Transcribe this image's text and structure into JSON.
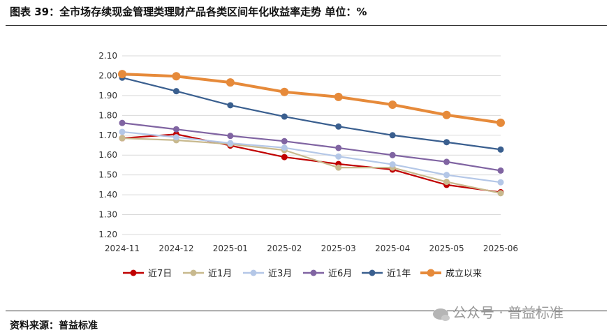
{
  "header": {
    "title": "图表 39：全市场存续现金管理类理财产品各类区间年化收益率走势  单位：%"
  },
  "footer": {
    "source": "资料来源：普益标准"
  },
  "watermark": {
    "text": "公众号 · 普益标准",
    "icon": "wechat-icon"
  },
  "chart_data": {
    "type": "line",
    "title": "",
    "xlabel": "",
    "ylabel": "",
    "categories": [
      "2024-11",
      "2024-12",
      "2025-01",
      "2025-02",
      "2025-03",
      "2025-04",
      "2025-05",
      "2025-06"
    ],
    "ylim": [
      1.2,
      2.1
    ],
    "yticks": [
      "2.10",
      "2.00",
      "1.90",
      "1.80",
      "1.70",
      "1.60",
      "1.50",
      "1.40",
      "1.30",
      "1.20"
    ],
    "grid": true,
    "legend_position": "bottom",
    "series": [
      {
        "name": "近7日",
        "color": "#c00000",
        "values": [
          1.685,
          1.705,
          1.648,
          1.59,
          1.555,
          1.527,
          1.45,
          1.413
        ]
      },
      {
        "name": "近1月",
        "color": "#c8b98e",
        "values": [
          1.685,
          1.675,
          1.655,
          1.625,
          1.537,
          1.537,
          1.465,
          1.408
        ]
      },
      {
        "name": "近3月",
        "color": "#b4c7e7",
        "values": [
          1.717,
          1.69,
          1.66,
          1.637,
          1.593,
          1.553,
          1.5,
          1.463
        ]
      },
      {
        "name": "近6月",
        "color": "#8064a2",
        "values": [
          1.762,
          1.73,
          1.697,
          1.67,
          1.636,
          1.6,
          1.566,
          1.522
        ]
      },
      {
        "name": "近1年",
        "color": "#3a5f8f",
        "values": [
          1.99,
          1.922,
          1.851,
          1.794,
          1.744,
          1.7,
          1.665,
          1.628
        ]
      },
      {
        "name": "成立以来",
        "color": "#e68a3a",
        "values": [
          2.008,
          1.997,
          1.966,
          1.918,
          1.893,
          1.854,
          1.802,
          1.763
        ]
      }
    ]
  }
}
